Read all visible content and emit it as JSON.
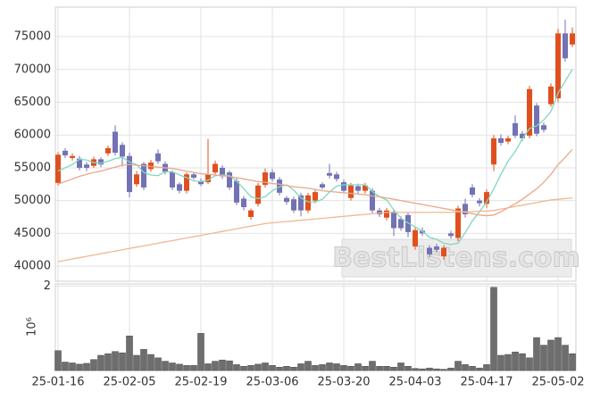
{
  "chart_data": [
    {
      "type": "candlestick",
      "categories": [
        "25-01-16",
        null,
        null,
        null,
        null,
        null,
        null,
        null,
        null,
        null,
        "25-02-05",
        null,
        null,
        null,
        null,
        null,
        null,
        null,
        null,
        null,
        "25-02-19",
        null,
        null,
        null,
        null,
        null,
        null,
        null,
        null,
        null,
        "25-03-06",
        null,
        null,
        null,
        null,
        null,
        null,
        null,
        null,
        null,
        "25-03-20",
        null,
        null,
        null,
        null,
        null,
        null,
        null,
        null,
        null,
        "25-04-03",
        null,
        null,
        null,
        null,
        null,
        null,
        null,
        null,
        null,
        "25-04-17",
        null,
        null,
        null,
        null,
        null,
        null,
        null,
        null,
        null,
        "25-05-02",
        null,
        null
      ],
      "open": [
        52700,
        57600,
        56500,
        56400,
        55500,
        55300,
        56300,
        57200,
        60500,
        58500,
        56800,
        52500,
        55600,
        54800,
        57200,
        55600,
        54300,
        52500,
        51500,
        54000,
        53000,
        52800,
        54300,
        55000,
        54300,
        53000,
        50300,
        47500,
        49500,
        52400,
        54300,
        53200,
        50400,
        50200,
        50800,
        48500,
        50000,
        52500,
        54200,
        54000,
        52800,
        50400,
        52200,
        51500,
        51500,
        48500,
        47400,
        48300,
        47200,
        47800,
        43000,
        45400,
        42800,
        43000,
        41500,
        45000,
        44300,
        49500,
        52000,
        50000,
        49500,
        55500,
        59500,
        59000,
        61800,
        60200,
        59900,
        64500,
        61500,
        64700,
        65600,
        75500,
        73800
      ],
      "high": [
        57400,
        58000,
        57200,
        56800,
        55900,
        56700,
        56600,
        58400,
        61500,
        58900,
        57300,
        54500,
        55900,
        56200,
        57800,
        56000,
        54600,
        52800,
        54300,
        54300,
        53400,
        59400,
        56100,
        55400,
        54600,
        53400,
        50700,
        48800,
        52700,
        54900,
        54800,
        53600,
        50700,
        50600,
        51200,
        51200,
        51700,
        52800,
        55600,
        54400,
        53200,
        52700,
        52600,
        52700,
        51900,
        48900,
        48900,
        48700,
        47600,
        48200,
        45900,
        45900,
        43200,
        43400,
        43200,
        45400,
        49200,
        50300,
        52500,
        50400,
        51700,
        60000,
        60100,
        59900,
        63000,
        60600,
        67500,
        64900,
        61900,
        67900,
        76200,
        77600,
        76400
      ],
      "low": [
        52300,
        56500,
        56100,
        54600,
        54500,
        55000,
        55100,
        56800,
        56900,
        55200,
        50500,
        52100,
        51600,
        54400,
        55600,
        54000,
        51600,
        51100,
        51100,
        53200,
        52200,
        52500,
        54000,
        53300,
        51600,
        49300,
        48500,
        47100,
        49100,
        52000,
        52900,
        50800,
        49400,
        48100,
        47600,
        48100,
        49600,
        51700,
        53400,
        52900,
        51100,
        50000,
        51100,
        51100,
        48100,
        47500,
        47000,
        44600,
        45400,
        44400,
        42500,
        44600,
        41300,
        42100,
        41000,
        44200,
        43800,
        47400,
        50500,
        49100,
        48900,
        54500,
        58400,
        58600,
        59500,
        59100,
        59500,
        59800,
        60400,
        64300,
        65000,
        71200,
        73400
      ],
      "close": [
        57000,
        56900,
        56800,
        55000,
        55000,
        56300,
        55500,
        58000,
        57300,
        56700,
        51300,
        54000,
        52000,
        55800,
        56000,
        54400,
        52000,
        51500,
        54000,
        53500,
        52500,
        54000,
        55600,
        53700,
        52000,
        49700,
        49000,
        48500,
        52300,
        54300,
        53300,
        51200,
        49800,
        48500,
        48500,
        50800,
        51300,
        52000,
        53800,
        53300,
        51500,
        52300,
        51500,
        52300,
        48500,
        47900,
        48500,
        45800,
        45800,
        45200,
        45500,
        45000,
        41800,
        42500,
        42800,
        44600,
        48800,
        47900,
        50900,
        49600,
        51300,
        59500,
        58800,
        59500,
        59900,
        59500,
        67000,
        60200,
        60800,
        67400,
        75500,
        71700,
        75500
      ],
      "up_color": "#e0501e",
      "down_color": "#7272b4",
      "lines": [
        {
          "color": "#7fd8c0",
          "values": [
            54500,
            55000,
            55500,
            56300,
            56200,
            55800,
            55700,
            56000,
            56400,
            56600,
            55900,
            55500,
            54300,
            53900,
            53800,
            54400,
            54400,
            53900,
            53500,
            53000,
            52900,
            53100,
            53800,
            53900,
            53800,
            53000,
            51800,
            50600,
            50300,
            50600,
            51500,
            52100,
            52400,
            51600,
            50400,
            49800,
            49800,
            50200,
            51300,
            52200,
            52400,
            52400,
            52400,
            52400,
            51400,
            50600,
            50100,
            48600,
            47300,
            46600,
            46000,
            45300,
            44400,
            44100,
            43500,
            43300,
            43500,
            45100,
            46900,
            48300,
            49800,
            51800,
            54000,
            56000,
            57500,
            59400,
            61000,
            61400,
            62300,
            63600,
            66400,
            68200,
            70000
          ]
        },
        {
          "color": "#e9a88a",
          "values": [
            52500,
            52900,
            53300,
            53700,
            54000,
            54300,
            54500,
            54800,
            55100,
            55400,
            55500,
            55400,
            55300,
            55200,
            55100,
            55000,
            54900,
            54700,
            54500,
            54300,
            54100,
            54000,
            53900,
            53800,
            53700,
            53500,
            53300,
            53100,
            52900,
            52800,
            52600,
            52500,
            52300,
            52100,
            52000,
            51900,
            51700,
            51500,
            51400,
            51300,
            51200,
            51100,
            51000,
            50900,
            50700,
            50600,
            50400,
            50200,
            50000,
            49800,
            49600,
            49400,
            49200,
            49000,
            48800,
            48600,
            48400,
            48200,
            48000,
            47800,
            47700,
            47800,
            48300,
            48900,
            49500,
            50200,
            51000,
            51800,
            52800,
            54000,
            55500,
            56600,
            57800
          ]
        },
        {
          "color": "#f0b890",
          "values": [
            40700,
            40900,
            41100,
            41300,
            41500,
            41700,
            41900,
            42100,
            42300,
            42500,
            42700,
            42900,
            43100,
            43300,
            43500,
            43700,
            43900,
            44100,
            44300,
            44500,
            44700,
            44900,
            45100,
            45300,
            45500,
            45700,
            45900,
            46100,
            46300,
            46500,
            46600,
            46700,
            46800,
            46900,
            47000,
            47100,
            47200,
            47300,
            47400,
            47500,
            47600,
            47700,
            47800,
            47900,
            48000,
            48100,
            48200,
            48200,
            48200,
            48200,
            48200,
            48200,
            48200,
            48200,
            48200,
            48200,
            48300,
            48300,
            48300,
            48400,
            48400,
            48500,
            48700,
            48900,
            49100,
            49300,
            49500,
            49700,
            49900,
            50100,
            50200,
            50300,
            50400
          ]
        }
      ],
      "ylim": [
        37700,
        79500
      ],
      "yticks": [
        40000,
        45000,
        50000,
        55000,
        60000,
        65000,
        70000,
        75000
      ],
      "grid": true,
      "watermark": "BestListens.com"
    },
    {
      "type": "bar",
      "values": [
        0.47,
        0.2,
        0.18,
        0.15,
        0.17,
        0.26,
        0.36,
        0.4,
        0.45,
        0.42,
        0.82,
        0.36,
        0.5,
        0.38,
        0.3,
        0.22,
        0.18,
        0.15,
        0.12,
        0.12,
        0.88,
        0.16,
        0.22,
        0.25,
        0.23,
        0.14,
        0.1,
        0.12,
        0.15,
        0.18,
        0.12,
        0.08,
        0.1,
        0.08,
        0.16,
        0.22,
        0.12,
        0.14,
        0.18,
        0.16,
        0.12,
        0.1,
        0.16,
        0.1,
        0.22,
        0.1,
        0.1,
        0.08,
        0.18,
        0.1,
        0.05,
        0.04,
        0.06,
        0.04,
        0.03,
        0.06,
        0.22,
        0.14,
        0.1,
        0.06,
        0.14,
        1.97,
        0.36,
        0.38,
        0.44,
        0.4,
        0.3,
        0.78,
        0.6,
        0.72,
        0.78,
        0.6,
        0.4
      ],
      "color": "#6e6e6e",
      "ylim": [
        0,
        2.05
      ],
      "yticks": [
        2
      ],
      "ylabel": "10⁶",
      "grid": true
    }
  ]
}
